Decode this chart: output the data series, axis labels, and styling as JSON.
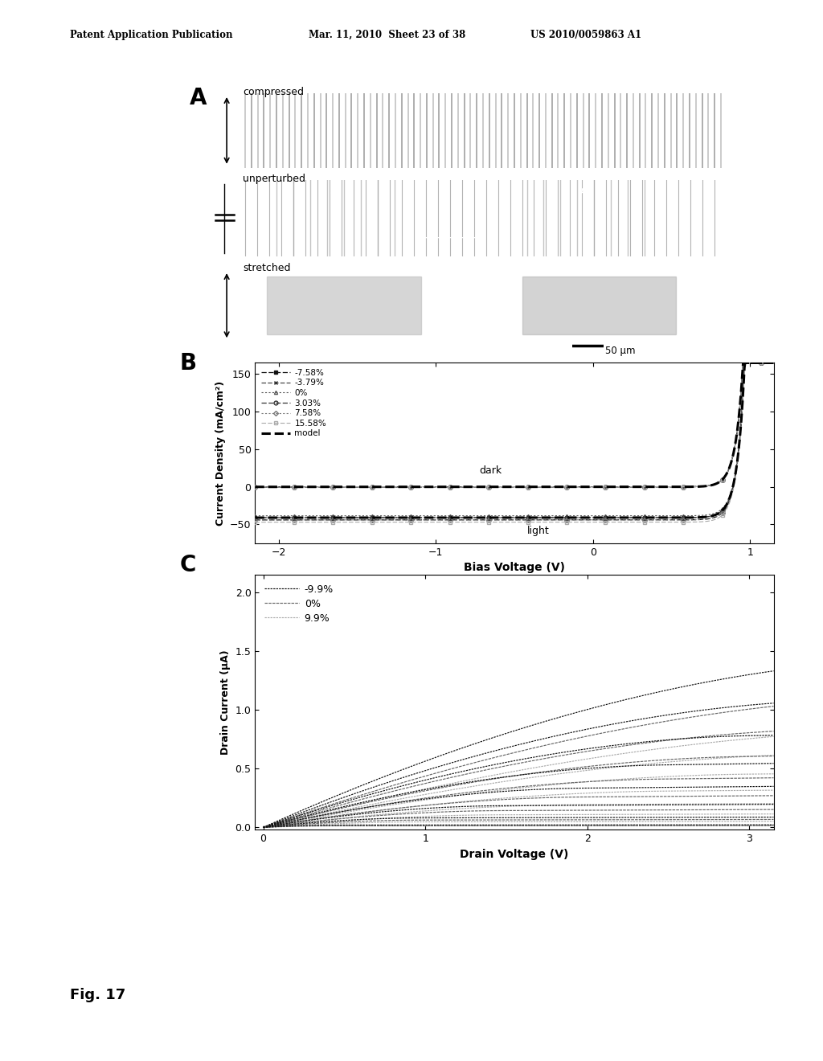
{
  "header_left": "Patent Application Publication",
  "header_mid": "Mar. 11, 2010  Sheet 23 of 38",
  "header_right": "US 2010/0059863 A1",
  "panel_A_label": "A",
  "panel_B_label": "B",
  "panel_C_label": "C",
  "fig_label": "Fig. 17",
  "compressed_label": "compressed",
  "unperturbed_label": "unperturbed",
  "stretched_label": "stretched",
  "scale_bar_label": "50 μm",
  "B_ylabel": "Current Density (mA/cm²)",
  "B_xlabel": "Bias Voltage (V)",
  "B_ylim": [
    -75,
    165
  ],
  "B_xlim": [
    -2.15,
    1.15
  ],
  "B_yticks": [
    -50,
    0,
    50,
    100,
    150
  ],
  "B_xticks": [
    -2,
    -1,
    0,
    1
  ],
  "dark_label": "dark",
  "light_label": "light",
  "C_ylabel": "Drain Current (μA)",
  "C_xlabel": "Drain Voltage (V)",
  "C_ylim": [
    -0.02,
    2.15
  ],
  "C_xlim": [
    -0.05,
    3.15
  ],
  "C_yticks": [
    0.0,
    0.5,
    1.0,
    1.5,
    2.0
  ],
  "C_xticks": [
    0,
    1,
    2,
    3
  ],
  "bg_color": "#ffffff"
}
